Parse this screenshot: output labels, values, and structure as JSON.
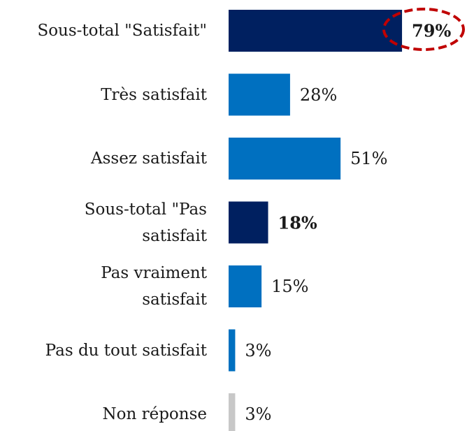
{
  "chart_data": {
    "type": "bar",
    "orientation": "horizontal",
    "categories": [
      "Sous-total \"Satisfait\"",
      "Très satisfait",
      "Assez satisfait",
      "Sous-total \"Pas satisfait",
      "Pas vraiment satisfait",
      "Pas du tout satisfait",
      "Non réponse"
    ],
    "values": [
      79,
      28,
      51,
      18,
      15,
      3,
      3
    ],
    "value_labels": [
      "79%",
      "28%",
      "51%",
      "18%",
      "15%",
      "3%",
      "3%"
    ],
    "colors": [
      "#002060",
      "#0070c0",
      "#0070c0",
      "#002060",
      "#0070c0",
      "#0070c0",
      "#c8c8c8"
    ],
    "xlim": [
      0,
      100
    ]
  }
}
